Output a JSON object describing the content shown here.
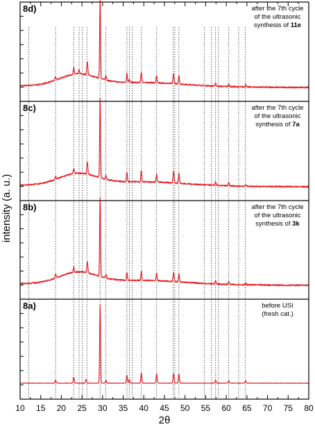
{
  "chart_data": {
    "type": "line",
    "x_min": 10,
    "x_max": 80,
    "xticks": [
      "10",
      "15",
      "20",
      "25",
      "30",
      "35",
      "40",
      "45",
      "50",
      "55",
      "60",
      "65",
      "70",
      "75",
      "80"
    ],
    "xlabel": "2θ",
    "ylabel": "intensity (a. u.)",
    "line_color": "#e8191f",
    "reference_lines": [
      12.1,
      18.6,
      23.0,
      24.3,
      25.1,
      26.2,
      29.4,
      30.8,
      35.9,
      36.5,
      37.2,
      39.4,
      43.1,
      47.1,
      47.5,
      48.5,
      54.7,
      56.4,
      57.4,
      58.1,
      60.6,
      63.0,
      64.6
    ],
    "panels": [
      {
        "label": "8d)",
        "annotation": [
          "after the 7th cycle",
          "of the ultrasonic",
          "synthesis of "
        ],
        "annotation_bold": "11e",
        "background": "amorphous hump",
        "peaks": [
          {
            "x": 18.6,
            "h": 0.04
          },
          {
            "x": 23.0,
            "h": 0.08
          },
          {
            "x": 24.3,
            "h": 0.05
          },
          {
            "x": 26.3,
            "h": 0.17
          },
          {
            "x": 29.4,
            "h": 1.0
          },
          {
            "x": 30.8,
            "h": 0.06
          },
          {
            "x": 35.9,
            "h": 0.12
          },
          {
            "x": 36.5,
            "h": 0.04
          },
          {
            "x": 39.4,
            "h": 0.13
          },
          {
            "x": 43.1,
            "h": 0.09
          },
          {
            "x": 47.2,
            "h": 0.12
          },
          {
            "x": 48.5,
            "h": 0.11
          },
          {
            "x": 57.4,
            "h": 0.04
          },
          {
            "x": 60.6,
            "h": 0.03
          },
          {
            "x": 64.7,
            "h": 0.03
          }
        ]
      },
      {
        "label": "8c)",
        "annotation": [
          "after the 7th cycle",
          "of the ultrasonic",
          "synthesis of "
        ],
        "annotation_bold": "7a",
        "background": "amorphous hump",
        "peaks": [
          {
            "x": 18.6,
            "h": 0.04
          },
          {
            "x": 23.0,
            "h": 0.06
          },
          {
            "x": 26.3,
            "h": 0.15
          },
          {
            "x": 29.4,
            "h": 1.0
          },
          {
            "x": 30.8,
            "h": 0.05
          },
          {
            "x": 35.9,
            "h": 0.11
          },
          {
            "x": 39.4,
            "h": 0.14
          },
          {
            "x": 43.1,
            "h": 0.1
          },
          {
            "x": 47.2,
            "h": 0.14
          },
          {
            "x": 48.5,
            "h": 0.13
          },
          {
            "x": 57.4,
            "h": 0.04
          },
          {
            "x": 60.6,
            "h": 0.04
          },
          {
            "x": 64.7,
            "h": 0.02
          }
        ]
      },
      {
        "label": "8b)",
        "annotation": [
          "after the 7th cycle",
          "of the ultrasonic",
          "synthesis of "
        ],
        "annotation_bold": "3k",
        "background": "amorphous hump",
        "peaks": [
          {
            "x": 18.6,
            "h": 0.05
          },
          {
            "x": 23.0,
            "h": 0.07
          },
          {
            "x": 26.3,
            "h": 0.14
          },
          {
            "x": 29.4,
            "h": 1.0
          },
          {
            "x": 30.8,
            "h": 0.05
          },
          {
            "x": 35.9,
            "h": 0.1
          },
          {
            "x": 39.4,
            "h": 0.11
          },
          {
            "x": 43.1,
            "h": 0.09
          },
          {
            "x": 47.2,
            "h": 0.11
          },
          {
            "x": 48.5,
            "h": 0.1
          },
          {
            "x": 57.4,
            "h": 0.04
          },
          {
            "x": 60.6,
            "h": 0.04
          },
          {
            "x": 64.7,
            "h": 0.02
          }
        ]
      },
      {
        "label": "8a)",
        "annotation": [
          "before USI",
          "(fresh cat.)"
        ],
        "annotation_bold": "",
        "background": "flat",
        "peaks": [
          {
            "x": 18.6,
            "h": 0.04
          },
          {
            "x": 23.0,
            "h": 0.08
          },
          {
            "x": 26.0,
            "h": 0.05
          },
          {
            "x": 29.4,
            "h": 1.0
          },
          {
            "x": 30.8,
            "h": 0.04
          },
          {
            "x": 35.9,
            "h": 0.1
          },
          {
            "x": 36.5,
            "h": 0.05
          },
          {
            "x": 39.4,
            "h": 0.13
          },
          {
            "x": 43.1,
            "h": 0.12
          },
          {
            "x": 47.2,
            "h": 0.12
          },
          {
            "x": 48.5,
            "h": 0.12
          },
          {
            "x": 57.4,
            "h": 0.04
          },
          {
            "x": 60.6,
            "h": 0.03
          },
          {
            "x": 64.7,
            "h": 0.03
          }
        ]
      }
    ]
  }
}
